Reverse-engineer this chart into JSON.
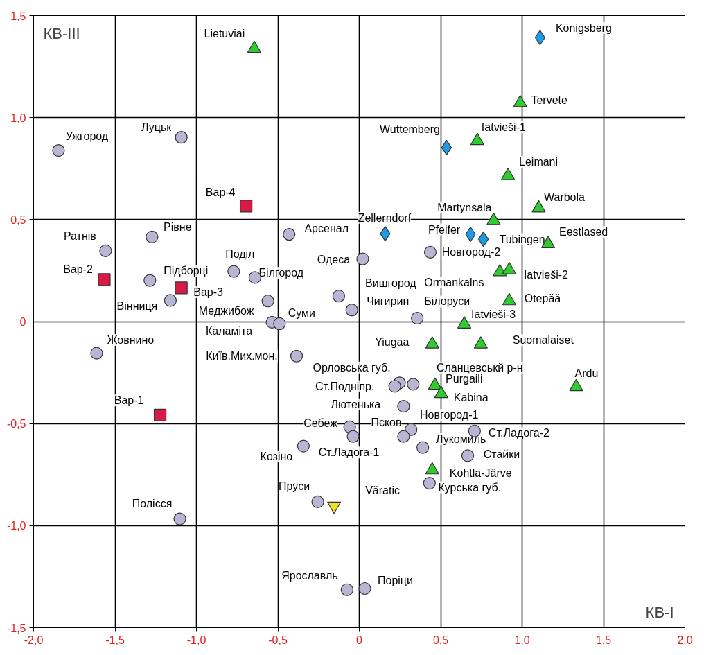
{
  "chart_data": {
    "type": "scatter",
    "xlabel": "КВ-I",
    "ylabel": "КВ-III",
    "xlim": [
      -2.0,
      2.0
    ],
    "ylim": [
      -1.5,
      1.5
    ],
    "xticks": [
      {
        "value": -2.0,
        "label": "-2,0"
      },
      {
        "value": -1.5,
        "label": "-1,5"
      },
      {
        "value": -1.0,
        "label": "-1,0"
      },
      {
        "value": -0.5,
        "label": "-0,5"
      },
      {
        "value": 0,
        "label": "0"
      },
      {
        "value": 0.5,
        "label": "0,5"
      },
      {
        "value": 1.0,
        "label": "1,0"
      },
      {
        "value": 1.5,
        "label": "1,5"
      },
      {
        "value": 2.0,
        "label": "2,0"
      }
    ],
    "yticks": [
      {
        "value": -1.5,
        "label": "-1,5"
      },
      {
        "value": -1.0,
        "label": "-1,0"
      },
      {
        "value": -0.5,
        "label": "-0,5"
      },
      {
        "value": 0,
        "label": "0"
      },
      {
        "value": 0.5,
        "label": "0,5"
      },
      {
        "value": 1.0,
        "label": "1,0"
      },
      {
        "value": 1.5,
        "label": "1,5"
      }
    ],
    "grid": true,
    "series": [
      {
        "color": "#b9b5d4",
        "marker": "circle",
        "x": [
          -1.847,
          -1.093,
          -1.558,
          -1.273,
          -1.286,
          -1.16,
          -1.613,
          -0.771,
          -0.641,
          -0.431,
          -0.561,
          -0.536,
          -0.49,
          -0.385,
          0.021,
          -0.126,
          -0.046,
          0.436,
          0.356,
          0.247,
          0.331,
          0.218,
          0.272,
          0.318,
          0.272,
          -0.059,
          -0.038,
          -0.343,
          0.39,
          0.708,
          0.666,
          0.431,
          -0.255,
          -1.102,
          -0.075,
          0.034
        ],
        "values": [
          0.839,
          0.903,
          0.347,
          0.415,
          0.202,
          0.104,
          -0.155,
          0.246,
          0.216,
          0.428,
          0.101,
          -0.003,
          -0.01,
          -0.169,
          0.307,
          0.125,
          0.057,
          0.34,
          0.017,
          -0.3,
          -0.307,
          -0.317,
          -0.415,
          -0.529,
          -0.563,
          -0.516,
          -0.563,
          -0.61,
          -0.617,
          -0.536,
          -0.657,
          -0.792,
          -0.883,
          -0.967,
          -1.314,
          -1.308
        ]
      },
      {
        "color": "#d81a44",
        "marker": "square",
        "x": [
          -0.695,
          -1.566,
          -1.093,
          -1.223
        ],
        "values": [
          0.566,
          0.206,
          0.165,
          -0.458
        ]
      },
      {
        "color": "#2ecc2e",
        "marker": "triangle",
        "x": [
          -0.645,
          0.988,
          0.725,
          0.913,
          1.102,
          0.825,
          1.16,
          0.863,
          0.921,
          0.921,
          0.645,
          0.448,
          0.746,
          1.332,
          0.465,
          0.503,
          0.448
        ],
        "values": [
          1.338,
          1.072,
          0.886,
          0.715,
          0.556,
          0.495,
          0.381,
          0.243,
          0.253,
          0.101,
          -0.013,
          -0.111,
          -0.111,
          -0.32,
          -0.313,
          -0.354,
          -0.728
        ]
      },
      {
        "color": "#1e9be6",
        "marker": "diamond",
        "x": [
          1.11,
          0.536,
          0.159,
          0.683,
          0.762
        ],
        "values": [
          1.392,
          0.853,
          0.431,
          0.428,
          0.404
        ]
      },
      {
        "color": "#f2e21c",
        "x": [
          -0.155
        ],
        "values": [
          -0.903
        ]
      }
    ],
    "annotations": [
      {
        "text": "Ужгород",
        "x": -1.847,
        "y": 0.839
      },
      {
        "text": "Луцьк",
        "x": -1.093,
        "y": 0.903
      },
      {
        "text": "Ратнів",
        "x": -1.558,
        "y": 0.347
      },
      {
        "text": "Рівне",
        "x": -1.273,
        "y": 0.415
      },
      {
        "text": "Підборці",
        "x": -1.286,
        "y": 0.202
      },
      {
        "text": "Вінниця",
        "x": -1.16,
        "y": 0.104
      },
      {
        "text": "Жовнино",
        "x": -1.613,
        "y": -0.155
      },
      {
        "text": "Поділ",
        "x": -0.771,
        "y": 0.246
      },
      {
        "text": "Білгород",
        "x": -0.641,
        "y": 0.216
      },
      {
        "text": "Арсенал",
        "x": -0.431,
        "y": 0.428
      },
      {
        "text": "Меджибож",
        "x": -0.561,
        "y": 0.101
      },
      {
        "text": "Каламіта",
        "x": -0.536,
        "y": -0.003
      },
      {
        "text": "Суми",
        "x": -0.49,
        "y": -0.01
      },
      {
        "text": "Київ.Мих.мон.",
        "x": -0.385,
        "y": -0.169
      },
      {
        "text": "Одеса",
        "x": 0.021,
        "y": 0.307
      },
      {
        "text": "Вишгород",
        "x": -0.126,
        "y": 0.125
      },
      {
        "text": "Чигирин",
        "x": -0.046,
        "y": 0.057
      },
      {
        "text": "Новгород-2",
        "x": 0.436,
        "y": 0.34
      },
      {
        "text": "Білоруси",
        "x": 0.356,
        "y": 0.017
      },
      {
        "text": "Орловська губ.",
        "x": 0.247,
        "y": -0.3
      },
      {
        "text": "Сланцевськй р-н",
        "x": 0.331,
        "y": -0.307
      },
      {
        "text": "Ст.Подніпр.",
        "x": 0.218,
        "y": -0.317
      },
      {
        "text": "Лютенька",
        "x": 0.272,
        "y": -0.415
      },
      {
        "text": "Новгород-1",
        "x": 0.318,
        "y": -0.529
      },
      {
        "text": "Псков",
        "x": 0.272,
        "y": -0.563
      },
      {
        "text": "Себеж",
        "x": -0.059,
        "y": -0.516
      },
      {
        "text": "Ст.Ладога-1",
        "x": -0.038,
        "y": -0.563
      },
      {
        "text": "Козіно",
        "x": -0.343,
        "y": -0.61
      },
      {
        "text": "Лукомиль",
        "x": 0.39,
        "y": -0.617
      },
      {
        "text": "Ст.Ладога-2",
        "x": 0.708,
        "y": -0.536
      },
      {
        "text": "Стайки",
        "x": 0.666,
        "y": -0.657
      },
      {
        "text": "Курська губ.",
        "x": 0.431,
        "y": -0.792
      },
      {
        "text": "Пруси",
        "x": -0.255,
        "y": -0.883
      },
      {
        "text": "Полісся",
        "x": -1.102,
        "y": -0.967
      },
      {
        "text": "Ярославль",
        "x": -0.075,
        "y": -1.314
      },
      {
        "text": "Поріци",
        "x": 0.034,
        "y": -1.308
      },
      {
        "text": "Вар-4",
        "x": -0.695,
        "y": 0.566
      },
      {
        "text": "Вар-2",
        "x": -1.566,
        "y": 0.206
      },
      {
        "text": "Вар-3",
        "x": -1.093,
        "y": 0.165
      },
      {
        "text": "Вар-1",
        "x": -1.223,
        "y": -0.458
      },
      {
        "text": "Lietuviai",
        "x": -0.645,
        "y": 1.338
      },
      {
        "text": "Tervete",
        "x": 0.988,
        "y": 1.072
      },
      {
        "text": "Iatvieši-1",
        "x": 0.725,
        "y": 0.886
      },
      {
        "text": "Leimani",
        "x": 0.913,
        "y": 0.715
      },
      {
        "text": "Warbola",
        "x": 1.102,
        "y": 0.556
      },
      {
        "text": "Martynsala",
        "x": 0.825,
        "y": 0.495
      },
      {
        "text": "Eestlased",
        "x": 1.16,
        "y": 0.381
      },
      {
        "text": "Ormankalns",
        "x": 0.863,
        "y": 0.243
      },
      {
        "text": "Iatvieši-2",
        "x": 0.921,
        "y": 0.253
      },
      {
        "text": "Otepää",
        "x": 0.921,
        "y": 0.101
      },
      {
        "text": "Iatvieši-3",
        "x": 0.645,
        "y": -0.013
      },
      {
        "text": "Yiugaa",
        "x": 0.448,
        "y": -0.111
      },
      {
        "text": "Suomalaiset",
        "x": 0.746,
        "y": -0.111
      },
      {
        "text": "Ardu",
        "x": 1.332,
        "y": -0.32
      },
      {
        "text": "Purgaili",
        "x": 0.465,
        "y": -0.313
      },
      {
        "text": "Kabina",
        "x": 0.503,
        "y": -0.354
      },
      {
        "text": "Kohtla-Järve",
        "x": 0.448,
        "y": -0.728
      },
      {
        "text": "Königsberg",
        "x": 1.11,
        "y": 1.392
      },
      {
        "text": "Wuttemberg",
        "x": 0.536,
        "y": 0.853
      },
      {
        "text": "Zellerndorf",
        "x": 0.159,
        "y": 0.431
      },
      {
        "text": "Pfeifer",
        "x": 0.683,
        "y": 0.428
      },
      {
        "text": "Tubingen",
        "x": 0.762,
        "y": 0.404
      },
      {
        "text": "Văratic",
        "x": -0.155,
        "y": -0.903
      }
    ]
  }
}
